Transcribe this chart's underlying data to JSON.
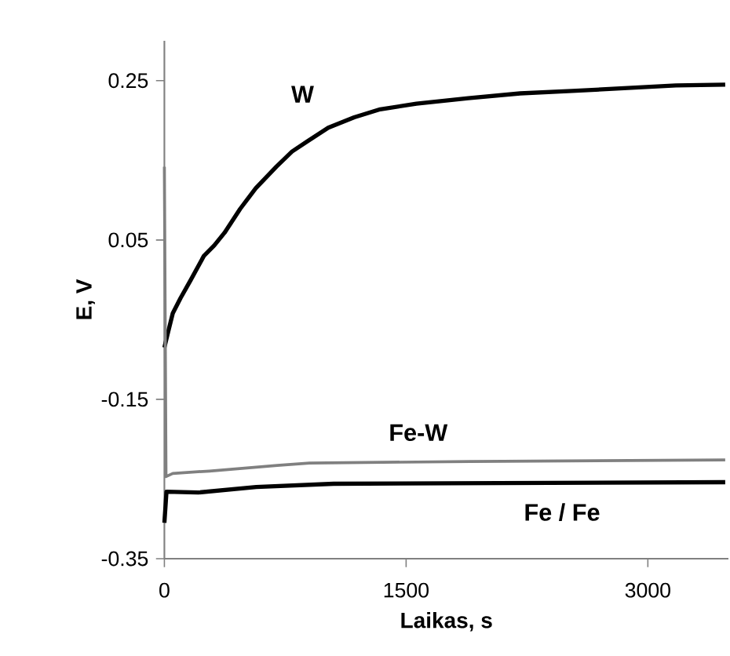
{
  "chart_data": {
    "type": "line",
    "xlabel": "Laikas, s",
    "ylabel": "E, V",
    "xlim": [
      0,
      3500
    ],
    "xticks": [
      0,
      1500,
      3000
    ],
    "ylim": [
      -0.35,
      0.3
    ],
    "yticks": [
      0.25,
      0.05,
      -0.15,
      -0.35
    ],
    "grid": false,
    "marker": "none",
    "line_style": "solid",
    "series": [
      {
        "name": "W",
        "color": "#000000",
        "x": [
          0,
          19,
          52,
          100,
          164,
          245,
          309,
          373,
          470,
          567,
          695,
          792,
          888,
          1017,
          1178,
          1339,
          1564,
          1886,
          2208,
          2530,
          3174,
          3480
        ],
        "values": [
          -0.085,
          -0.069,
          -0.042,
          -0.023,
          0.0,
          0.03,
          0.043,
          0.059,
          0.089,
          0.115,
          0.142,
          0.161,
          0.174,
          0.191,
          0.204,
          0.214,
          0.221,
          0.228,
          0.234,
          0.237,
          0.244,
          0.245
        ]
      },
      {
        "name": "Fe-W",
        "color": "#808080",
        "x": [
          0,
          10,
          52,
          280,
          700,
          900,
          1900,
          3480
        ],
        "values": [
          0.142,
          -0.247,
          -0.243,
          -0.24,
          -0.233,
          -0.23,
          -0.228,
          -0.226
        ]
      },
      {
        "name": "Fe / Fe",
        "color": "#000000",
        "x": [
          0,
          13,
          210,
          570,
          1050,
          3480
        ],
        "values": [
          -0.305,
          -0.266,
          -0.267,
          -0.26,
          -0.256,
          -0.254
        ]
      }
    ]
  }
}
